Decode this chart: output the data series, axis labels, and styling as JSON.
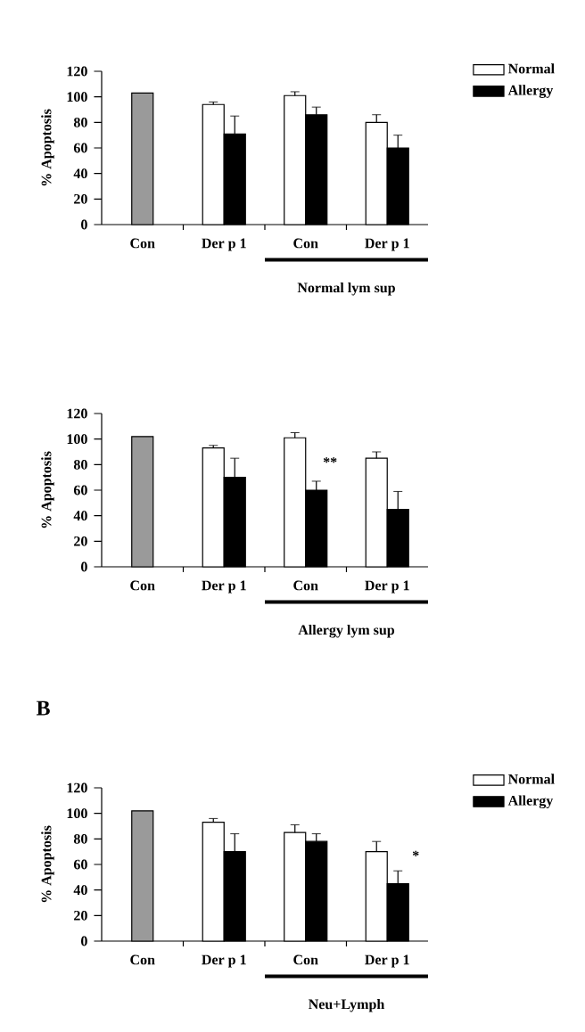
{
  "chart_data": [
    {
      "type": "bar",
      "categories": [
        "Con",
        "Der p 1",
        "Con",
        "Der p 1"
      ],
      "ylabel": "% Apoptosis",
      "ylim": [
        0,
        120
      ],
      "yticks": [
        0,
        20,
        40,
        60,
        80,
        100,
        120
      ],
      "legend": "right",
      "series": [
        {
          "color": "#9a9a9a",
          "values": [
            103,
            null,
            null,
            null
          ]
        },
        {
          "name": "Normal",
          "color": "#ffffff",
          "values": [
            null,
            94,
            101,
            80
          ],
          "errors": [
            null,
            2,
            3,
            6
          ]
        },
        {
          "name": "Allergy",
          "color": "#000000",
          "values": [
            null,
            71,
            86,
            60
          ],
          "errors": [
            null,
            14,
            6,
            10
          ]
        }
      ],
      "annotations": [
        "Normal  lym sup"
      ]
    },
    {
      "type": "bar",
      "categories": [
        "Con",
        "Der p 1",
        "Con",
        "Der p 1"
      ],
      "ylabel": "% Apoptosis",
      "ylim": [
        0,
        120
      ],
      "yticks": [
        0,
        20,
        40,
        60,
        80,
        100,
        120
      ],
      "legend": false,
      "series": [
        {
          "color": "#9a9a9a",
          "values": [
            102,
            null,
            null,
            null
          ]
        },
        {
          "color": "#ffffff",
          "values": [
            null,
            93,
            101,
            85
          ],
          "errors": [
            null,
            2,
            4,
            5
          ]
        },
        {
          "color": "#000000",
          "values": [
            null,
            70,
            60,
            45
          ],
          "errors": [
            null,
            15,
            7,
            14
          ]
        }
      ],
      "annotations": [
        "Allergy  lym sup",
        "**"
      ]
    },
    {
      "type": "bar",
      "title": "B",
      "categories": [
        "Con",
        "Der p 1",
        "Con",
        "Der p 1"
      ],
      "ylabel": "% Apoptosis",
      "ylim": [
        0,
        120
      ],
      "yticks": [
        0,
        20,
        40,
        60,
        80,
        100,
        120
      ],
      "legend": "right",
      "series": [
        {
          "color": "#9a9a9a",
          "values": [
            102,
            null,
            null,
            null
          ]
        },
        {
          "name": "Normal",
          "color": "#ffffff",
          "values": [
            null,
            93,
            85,
            70
          ],
          "errors": [
            null,
            3,
            6,
            8
          ]
        },
        {
          "name": "Allergy",
          "color": "#000000",
          "values": [
            null,
            70,
            78,
            45
          ],
          "errors": [
            null,
            14,
            6,
            10
          ]
        }
      ],
      "annotations": [
        "Neu+Lymph",
        "*"
      ]
    }
  ]
}
